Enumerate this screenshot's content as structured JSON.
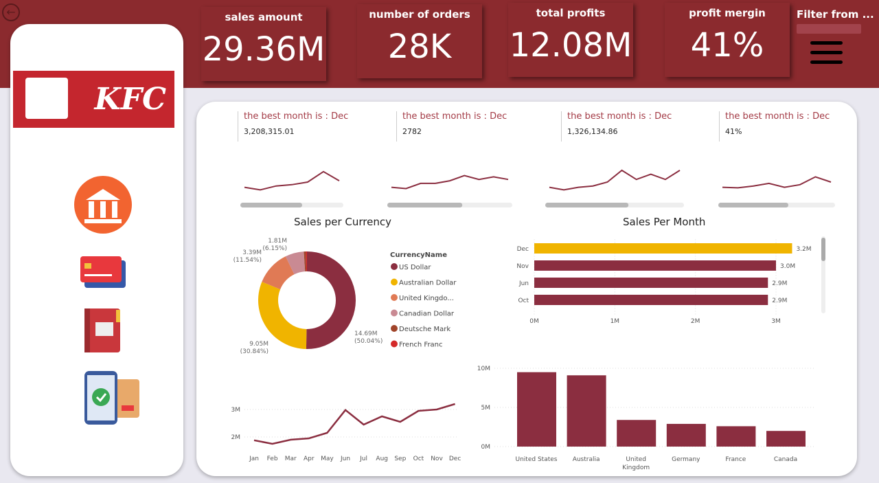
{
  "kpis": [
    {
      "title": "sales amount",
      "value": "29.36M"
    },
    {
      "title": "number of orders",
      "value": "28K"
    },
    {
      "title": "total profits",
      "value": "12.08M"
    },
    {
      "title": "profit mergin",
      "value": "41%"
    }
  ],
  "filter": {
    "label": "Filter from ..."
  },
  "logo": {
    "text": "KFC"
  },
  "best_months": [
    {
      "label": "the best month is : Dec",
      "value": "3,208,315.01",
      "trend": [
        0.3,
        0.2,
        0.35,
        0.4,
        0.5,
        0.9,
        0.55
      ]
    },
    {
      "label": "the best month is : Dec",
      "value": "2782",
      "trend": [
        0.3,
        0.25,
        0.45,
        0.45,
        0.55,
        0.75,
        0.6,
        0.7,
        0.6
      ]
    },
    {
      "label": "the best month is : Dec",
      "value": "1,326,134.86",
      "trend": [
        0.3,
        0.2,
        0.3,
        0.35,
        0.5,
        0.95,
        0.6,
        0.8,
        0.6,
        0.95
      ]
    },
    {
      "label": "the best month is : Dec",
      "value": "41%",
      "trend": [
        0.3,
        0.28,
        0.35,
        0.45,
        0.3,
        0.4,
        0.7,
        0.5
      ]
    }
  ],
  "colors": {
    "brand": "#8b2a2e",
    "series": "#8b2e40",
    "highlight": "#f0b400"
  },
  "chart_data": [
    {
      "type": "pie",
      "title": "Sales per Currency",
      "legend_title": "CurrencyName",
      "legend_position": "right",
      "categories": [
        "US Dollar",
        "Australian Dollar",
        "United Kingdo...",
        "Canadian Dollar",
        "Deutsche Mark",
        "French Franc"
      ],
      "values": [
        14.69,
        9.05,
        3.39,
        1.81,
        0.2,
        0.1
      ],
      "labels": [
        "14.69M (50.04%)",
        "9.05M (30.84%)",
        "3.39M (11.54%)",
        "1.81M (6.15%)",
        "",
        ""
      ],
      "colors": [
        "#8b2e40",
        "#f0b400",
        "#e07a55",
        "#c98a93",
        "#a0442a",
        "#d42a2a"
      ]
    },
    {
      "type": "bar",
      "orientation": "horizontal",
      "title": "Sales Per Month",
      "categories": [
        "Dec",
        "Nov",
        "Jun",
        "Oct"
      ],
      "values": [
        3.2,
        3.0,
        2.9,
        2.9
      ],
      "data_labels": [
        "3.2M",
        "3.0M",
        "2.9M",
        "2.9M"
      ],
      "x_ticks": [
        "0M",
        "1M",
        "2M",
        "3M"
      ],
      "xlim": [
        0,
        3.3
      ]
    },
    {
      "type": "line",
      "categories": [
        "Jan",
        "Feb",
        "Mar",
        "Apr",
        "May",
        "Jun",
        "Jul",
        "Aug",
        "Sep",
        "Oct",
        "Nov",
        "Dec"
      ],
      "values": [
        1.88,
        1.75,
        1.9,
        1.95,
        2.15,
        2.98,
        2.45,
        2.75,
        2.55,
        2.95,
        3.0,
        3.2
      ],
      "y_ticks": [
        "2M",
        "3M"
      ],
      "ylim": [
        1.6,
        3.3
      ]
    },
    {
      "type": "bar",
      "categories": [
        "United States",
        "Australia",
        "United Kingdom",
        "Germany",
        "France",
        "Canada"
      ],
      "values": [
        9.5,
        9.1,
        3.4,
        2.9,
        2.6,
        2.0
      ],
      "y_ticks": [
        "0M",
        "5M",
        "10M"
      ],
      "ylim": [
        0,
        10
      ]
    }
  ]
}
